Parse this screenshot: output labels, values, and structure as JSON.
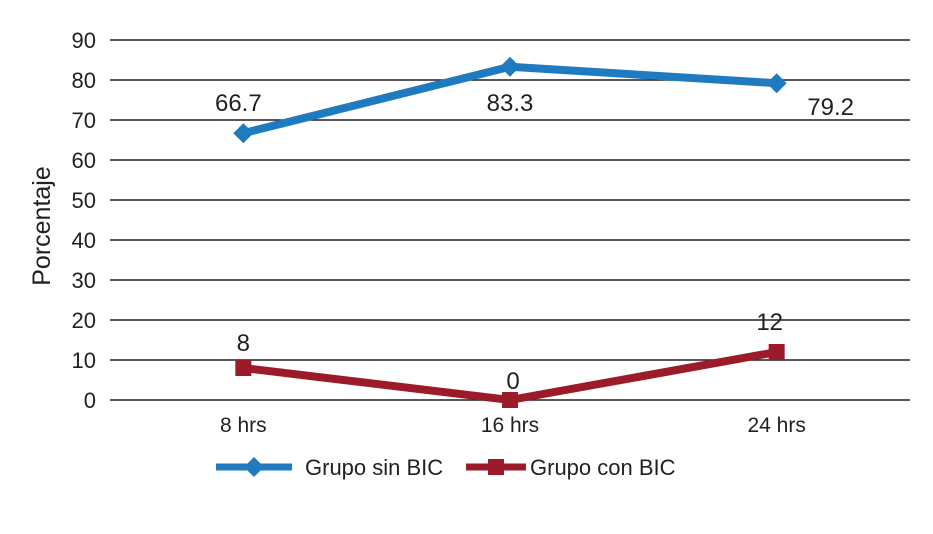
{
  "chart_data": {
    "type": "line",
    "title": "",
    "xlabel": "",
    "ylabel": "Porcentaje",
    "categories": [
      "8 hrs",
      "16 hrs",
      "24 hrs"
    ],
    "ylim": [
      0,
      90
    ],
    "yticks": [
      0,
      10,
      20,
      30,
      40,
      50,
      60,
      70,
      80,
      90
    ],
    "grid": true,
    "legend_position": "bottom",
    "series": [
      {
        "name": "Grupo sin BIC",
        "values": [
          66.7,
          83.3,
          79.2
        ],
        "labels": [
          "66.7",
          "83.3",
          "79.2"
        ],
        "color": "#1f7ac0",
        "marker": "diamond"
      },
      {
        "name": "Grupo con BIC",
        "values": [
          8,
          0,
          12
        ],
        "labels": [
          "8",
          "0",
          "12"
        ],
        "color": "#9b1b2a",
        "marker": "square"
      }
    ]
  }
}
